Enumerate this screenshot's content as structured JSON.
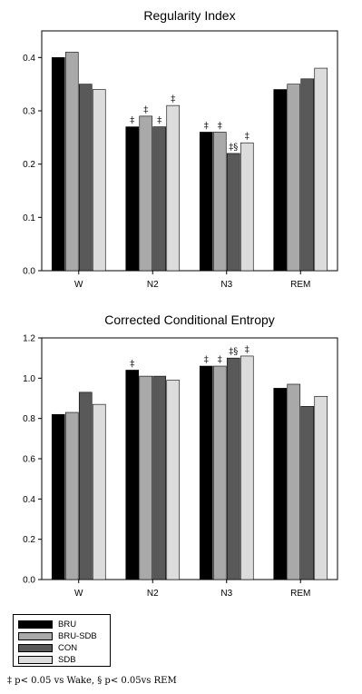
{
  "colors": {
    "BRU": "#000000",
    "BRU-SDB": "#a9a9a9",
    "CON": "#595959",
    "SDB": "#dcdcdc"
  },
  "legend": [
    {
      "name": "BRU",
      "color": "#000000"
    },
    {
      "name": "BRU-SDB",
      "color": "#a9a9a9"
    },
    {
      "name": "CON",
      "color": "#595959"
    },
    {
      "name": "SDB",
      "color": "#dcdcdc"
    }
  ],
  "footnote": "‡ p< 0.05 vs Wake, § p< 0.05vs REM",
  "chart_data": [
    {
      "type": "bar",
      "title": "Regularity Index",
      "xlabel": "",
      "ylabel": "",
      "categories": [
        "W",
        "N2",
        "N3",
        "REM"
      ],
      "ylim": [
        0,
        0.45
      ],
      "yticks": [
        "0.0",
        "0.1",
        "0.2",
        "0.3",
        "0.4"
      ],
      "series": [
        {
          "name": "BRU",
          "values": [
            0.4,
            0.27,
            0.26,
            0.34
          ]
        },
        {
          "name": "BRU-SDB",
          "values": [
            0.41,
            0.29,
            0.26,
            0.35
          ]
        },
        {
          "name": "CON",
          "values": [
            0.35,
            0.27,
            0.22,
            0.36
          ]
        },
        {
          "name": "SDB",
          "values": [
            0.34,
            0.31,
            0.24,
            0.38
          ]
        }
      ],
      "annotations": [
        [
          "",
          "",
          "",
          ""
        ],
        [
          "‡",
          "‡",
          "‡",
          "‡"
        ],
        [
          "‡",
          "‡",
          "‡§",
          "‡"
        ],
        [
          "",
          "",
          "",
          ""
        ]
      ]
    },
    {
      "type": "bar",
      "title": "Corrected Conditional Entropy",
      "xlabel": "",
      "ylabel": "",
      "categories": [
        "W",
        "N2",
        "N3",
        "REM"
      ],
      "ylim": [
        0,
        1.2
      ],
      "yticks": [
        "0.0",
        "0.2",
        "0.4",
        "0.6",
        "0.8",
        "1.0",
        "1.2"
      ],
      "series": [
        {
          "name": "BRU",
          "values": [
            0.82,
            1.04,
            1.06,
            0.95
          ]
        },
        {
          "name": "BRU-SDB",
          "values": [
            0.83,
            1.01,
            1.06,
            0.97
          ]
        },
        {
          "name": "CON",
          "values": [
            0.93,
            1.01,
            1.1,
            0.86
          ]
        },
        {
          "name": "SDB",
          "values": [
            0.87,
            0.99,
            1.11,
            0.91
          ]
        }
      ],
      "annotations": [
        [
          "",
          "",
          "",
          ""
        ],
        [
          "‡",
          "",
          "",
          ""
        ],
        [
          "‡",
          "‡",
          "‡§",
          "‡"
        ],
        [
          "",
          "",
          "",
          ""
        ]
      ]
    }
  ]
}
